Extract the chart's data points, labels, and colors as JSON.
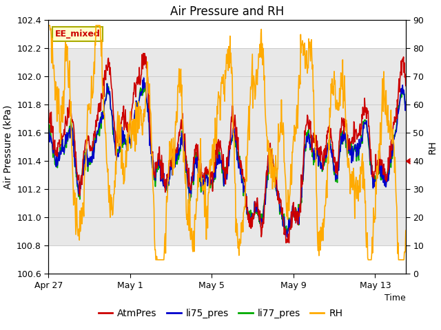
{
  "title": "Air Pressure and RH",
  "ylabel_left": "Air Pressure (kPa)",
  "ylabel_right": "RH",
  "xlabel": "Time",
  "ylim_left": [
    100.6,
    102.4
  ],
  "ylim_right": [
    0,
    90
  ],
  "xlim_days": [
    0,
    17.5
  ],
  "xtick_positions": [
    0,
    4,
    8,
    12,
    16
  ],
  "xtick_labels": [
    "Apr 27",
    "May 1",
    "May 5",
    "May 9",
    "May 13"
  ],
  "ytick_left": [
    100.6,
    100.8,
    101.0,
    101.2,
    101.4,
    101.6,
    101.8,
    102.0,
    102.2,
    102.4
  ],
  "ytick_right": [
    0,
    10,
    20,
    30,
    40,
    50,
    60,
    70,
    80,
    90
  ],
  "shaded_ymin": 100.8,
  "shaded_ymax": 102.2,
  "color_atm": "#cc0000",
  "color_li75": "#0000cc",
  "color_li77": "#00aa00",
  "color_rh": "#ffaa00",
  "color_shade": "#e8e8e8",
  "color_grid": "#cccccc",
  "ee_label": "EE_mixed",
  "ee_bg": "#ffffcc",
  "ee_edge": "#aaaa00",
  "ee_text_color": "#cc0000",
  "bg_color": "#ffffff",
  "title_fontsize": 12,
  "axis_label_fontsize": 10,
  "tick_fontsize": 9,
  "legend_fontsize": 10,
  "line_width": 1.2,
  "rh_marker_rh_val": 40,
  "rh_marker_color": "#cc0000"
}
